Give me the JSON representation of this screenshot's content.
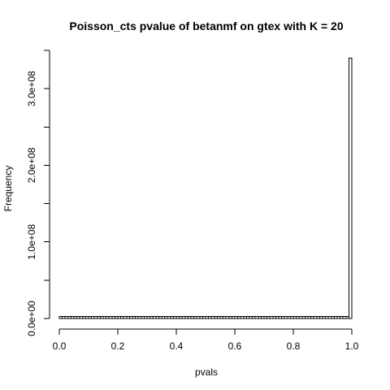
{
  "chart_data": {
    "type": "bar",
    "title": "Poisson_cts pvalue of betanmf on gtex with K = 20",
    "xlabel": "pvals",
    "ylabel": "Frequency",
    "xlim": [
      0,
      1
    ],
    "ylim": [
      0,
      350000000
    ],
    "x_ticks": [
      {
        "value": 0.0,
        "label": "0.0"
      },
      {
        "value": 0.2,
        "label": "0.2"
      },
      {
        "value": 0.4,
        "label": "0.4"
      },
      {
        "value": 0.6,
        "label": "0.6"
      },
      {
        "value": 0.8,
        "label": "0.8"
      },
      {
        "value": 1.0,
        "label": "1.0"
      }
    ],
    "y_ticks": [
      {
        "value": 0,
        "label": "0.0e+00"
      },
      {
        "value": 50000000,
        "label": ""
      },
      {
        "value": 100000000,
        "label": "1.0e+08"
      },
      {
        "value": 150000000,
        "label": ""
      },
      {
        "value": 200000000,
        "label": "2.0e+08"
      },
      {
        "value": 250000000,
        "label": ""
      },
      {
        "value": 300000000,
        "label": "3.0e+08"
      },
      {
        "value": 350000000,
        "label": ""
      }
    ],
    "bin_width": 0.01,
    "bins": {
      "start": 0,
      "end": 1,
      "count": 100,
      "base_frequency": 2500000,
      "last_bin_frequency": 340000000
    },
    "grid": false,
    "legend": "none",
    "colors": {
      "bar_fill": "#ffffff",
      "bar_stroke": "#000000",
      "axis": "#000000",
      "background": "#ffffff"
    }
  }
}
